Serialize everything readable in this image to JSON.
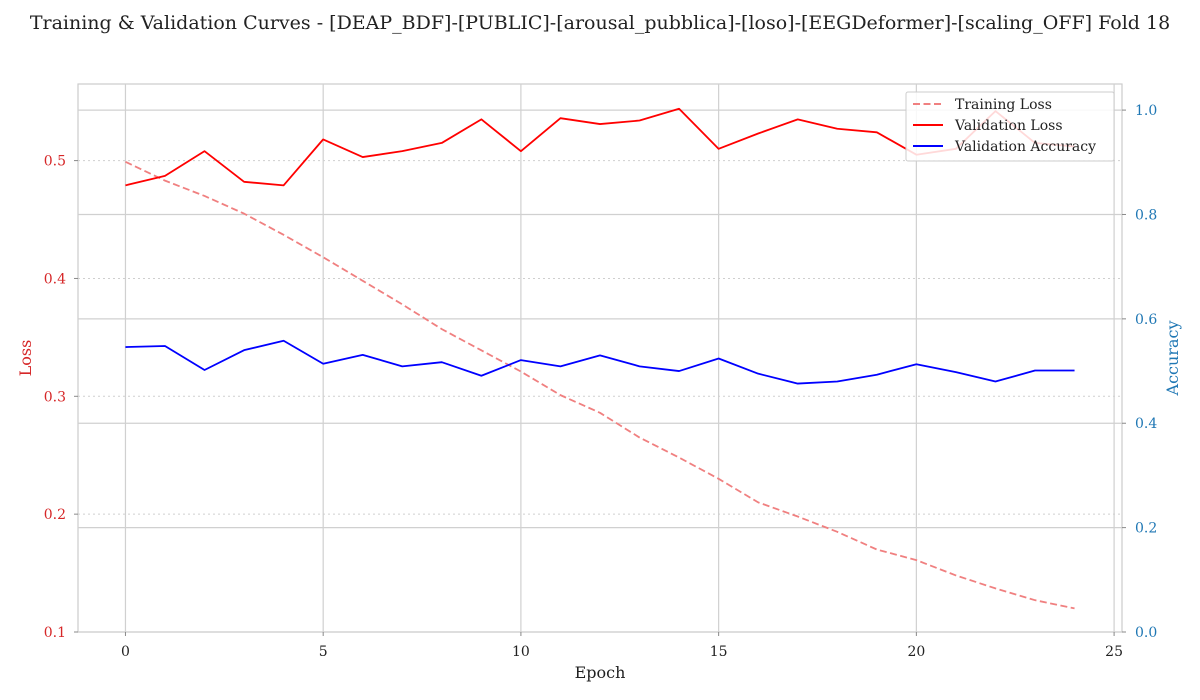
{
  "chart_data": {
    "type": "line",
    "title": "Training & Validation Curves - [DEAP_BDF]-[PUBLIC]-[arousal_pubblica]-[loso]-[EEGDeformer]-[scaling_OFF] Fold 18",
    "xlabel": "Epoch",
    "ylabel_left": "Loss",
    "ylabel_right": "Accuracy",
    "xlim": [
      -1.2,
      25.2
    ],
    "ylim_left": [
      0.1,
      0.565
    ],
    "ylim_right": [
      0.0,
      1.05
    ],
    "x_ticks": [
      0,
      5,
      10,
      15,
      20,
      25
    ],
    "y_ticks_left": [
      0.1,
      0.2,
      0.3,
      0.4,
      0.5
    ],
    "y_ticks_right": [
      0.0,
      0.2,
      0.4,
      0.6,
      0.8,
      1.0
    ],
    "grid": true,
    "legend_position": "top-right",
    "colors": {
      "training_loss": "#f08080",
      "validation_loss": "#ff0000",
      "validation_accuracy": "#0000ff",
      "left_axis_text": "#d62728",
      "right_axis_text": "#1f77b4"
    },
    "x": [
      0,
      1,
      2,
      3,
      4,
      5,
      6,
      7,
      8,
      9,
      10,
      11,
      12,
      13,
      14,
      15,
      16,
      17,
      18,
      19,
      20,
      21,
      22,
      23,
      24
    ],
    "series": [
      {
        "name": "Training Loss",
        "axis": "left",
        "style": "dashed",
        "values": [
          0.499,
          0.483,
          0.47,
          0.455,
          0.437,
          0.418,
          0.398,
          0.378,
          0.357,
          0.339,
          0.321,
          0.301,
          0.286,
          0.265,
          0.248,
          0.23,
          0.21,
          0.198,
          0.185,
          0.17,
          0.161,
          0.148,
          0.137,
          0.127,
          0.12
        ]
      },
      {
        "name": "Validation Loss",
        "axis": "left",
        "style": "solid",
        "values": [
          0.479,
          0.487,
          0.508,
          0.482,
          0.479,
          0.518,
          0.503,
          0.508,
          0.515,
          0.535,
          0.508,
          0.536,
          0.531,
          0.534,
          0.544,
          0.51,
          0.523,
          0.535,
          0.527,
          0.524,
          0.505,
          0.51,
          0.542,
          0.515,
          0.512
        ]
      },
      {
        "name": "Validation Accuracy",
        "axis": "right",
        "style": "solid",
        "values": [
          0.546,
          0.548,
          0.502,
          0.54,
          0.558,
          0.514,
          0.531,
          0.509,
          0.517,
          0.491,
          0.521,
          0.509,
          0.53,
          0.509,
          0.5,
          0.524,
          0.495,
          0.476,
          0.48,
          0.493,
          0.513,
          0.498,
          0.48,
          0.501,
          0.501
        ]
      }
    ]
  }
}
